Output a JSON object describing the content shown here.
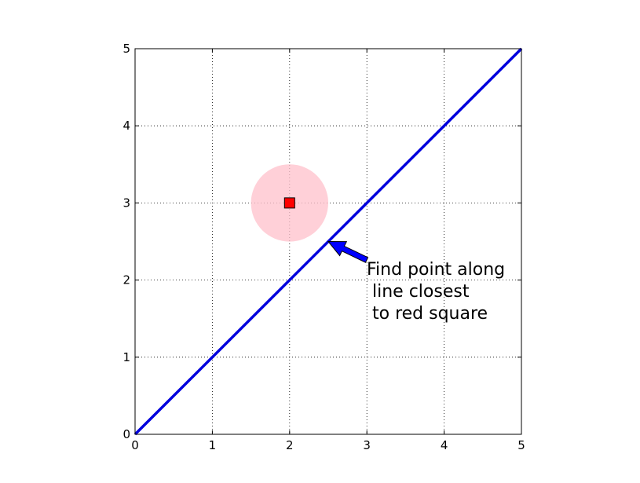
{
  "chart_data": {
    "type": "line",
    "title": "",
    "xlabel": "",
    "ylabel": "",
    "xlim": [
      0,
      5
    ],
    "ylim": [
      0,
      5
    ],
    "grid": true,
    "x_ticks": [
      0,
      1,
      2,
      3,
      4,
      5
    ],
    "y_ticks": [
      0,
      1,
      2,
      3,
      4,
      5
    ],
    "x_tick_labels": [
      "0",
      "1",
      "2",
      "3",
      "4",
      "5"
    ],
    "y_tick_labels": [
      "0",
      "1",
      "2",
      "3",
      "4",
      "5"
    ],
    "series": [
      {
        "values_x": [
          0,
          5
        ],
        "values_y": [
          0,
          5
        ],
        "color": "#0000dd"
      }
    ],
    "marker": {
      "x": 2,
      "y": 3,
      "shape": "square",
      "color": "#ff0000"
    },
    "circle": {
      "center_x": 2,
      "center_y": 3,
      "radius": 0.5,
      "color": "#ffc0cb"
    },
    "annotation": {
      "lines": [
        "Find point along",
        " line closest",
        " to red square"
      ],
      "arrow_target_x": 2.5,
      "arrow_target_y": 2.5,
      "arrow_color": "#0000ff"
    }
  }
}
